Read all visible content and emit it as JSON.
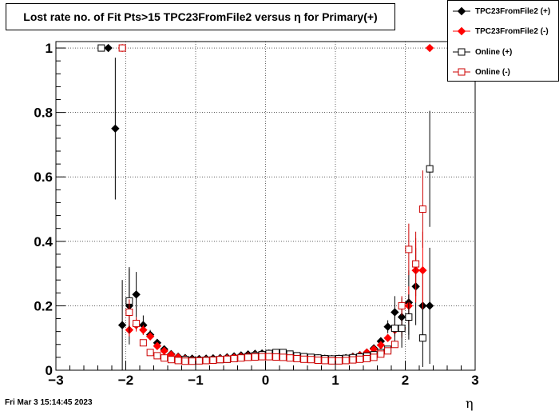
{
  "title": "Lost rate no. of Fit Pts>15 TPC23FromFile2 versus η for Primary(+)",
  "datestamp": "Fri Mar  3 15:14:45 2023",
  "xlabel": "η",
  "legend": [
    {
      "label": "TPC23FromFile2 (+)",
      "color": "#000000",
      "marker": "filled-diamond"
    },
    {
      "label": "TPC23FromFile2 (-)",
      "color": "#ff0000",
      "marker": "filled-diamond"
    },
    {
      "label": "Online (+)",
      "color": "#000000",
      "marker": "open-square"
    },
    {
      "label": "Online (-)",
      "color": "#cc0000",
      "marker": "open-square"
    }
  ],
  "chart_data": {
    "type": "scatter",
    "title": "Lost rate no. of Fit Pts>15 TPC23FromFile2 versus η for Primary(+)",
    "xlabel": "η",
    "ylabel": "",
    "xlim": [
      -3,
      3
    ],
    "ylim": [
      0,
      1.02
    ],
    "x_ticks": [
      -3,
      -2,
      -1,
      0,
      1,
      2,
      3
    ],
    "x_tick_labels": [
      "−3",
      "−2",
      "−1",
      "0",
      "1",
      "2",
      "3"
    ],
    "y_ticks": [
      0,
      0.2,
      0.4,
      0.6,
      0.8,
      1
    ],
    "y_tick_labels": [
      "0",
      "0.2",
      "0.4",
      "0.6",
      "0.8",
      "1"
    ],
    "grid": true,
    "legend_position": "top-right",
    "series": [
      {
        "name": "TPC23FromFile2 (+)",
        "color": "#000000",
        "marker": "filled-diamond",
        "points": [
          [
            -2.25,
            1.0,
            0
          ],
          [
            -2.15,
            0.75,
            0.22
          ],
          [
            -2.05,
            0.14,
            0.14
          ],
          [
            -1.95,
            0.2,
            0.12
          ],
          [
            -1.85,
            0.235,
            0.07
          ],
          [
            -1.75,
            0.14,
            0.03
          ],
          [
            -1.65,
            0.11,
            0.015
          ],
          [
            -1.55,
            0.085,
            0.01
          ],
          [
            -1.45,
            0.065,
            0.008
          ],
          [
            -1.35,
            0.05,
            0.006
          ],
          [
            -1.25,
            0.042,
            0.005
          ],
          [
            -1.15,
            0.038,
            0.004
          ],
          [
            -1.05,
            0.036,
            0.004
          ],
          [
            -0.95,
            0.035,
            0.004
          ],
          [
            -0.85,
            0.036,
            0.004
          ],
          [
            -0.75,
            0.037,
            0.004
          ],
          [
            -0.65,
            0.038,
            0.004
          ],
          [
            -0.55,
            0.04,
            0.004
          ],
          [
            -0.45,
            0.043,
            0.004
          ],
          [
            -0.35,
            0.046,
            0.004
          ],
          [
            -0.25,
            0.049,
            0.004
          ],
          [
            -0.15,
            0.051,
            0.004
          ],
          [
            -0.05,
            0.052,
            0.004
          ],
          [
            0.05,
            0.052,
            0.004
          ],
          [
            0.15,
            0.05,
            0.004
          ],
          [
            0.25,
            0.048,
            0.004
          ],
          [
            0.35,
            0.045,
            0.004
          ],
          [
            0.45,
            0.042,
            0.004
          ],
          [
            0.55,
            0.04,
            0.004
          ],
          [
            0.65,
            0.038,
            0.004
          ],
          [
            0.75,
            0.037,
            0.004
          ],
          [
            0.85,
            0.036,
            0.004
          ],
          [
            0.95,
            0.035,
            0.004
          ],
          [
            1.05,
            0.036,
            0.004
          ],
          [
            1.15,
            0.038,
            0.004
          ],
          [
            1.25,
            0.042,
            0.005
          ],
          [
            1.35,
            0.047,
            0.006
          ],
          [
            1.45,
            0.055,
            0.007
          ],
          [
            1.55,
            0.068,
            0.008
          ],
          [
            1.65,
            0.09,
            0.012
          ],
          [
            1.75,
            0.135,
            0.02
          ],
          [
            1.85,
            0.18,
            0.05
          ],
          [
            1.95,
            0.165,
            0.06
          ],
          [
            2.05,
            0.21,
            0.1
          ],
          [
            2.15,
            0.26,
            0.12
          ],
          [
            2.25,
            0.2,
            0.1
          ],
          [
            2.35,
            0.2,
            0.18
          ]
        ]
      },
      {
        "name": "TPC23FromFile2 (-)",
        "color": "#ff0000",
        "marker": "filled-diamond",
        "points": [
          [
            -2.05,
            1.0,
            0
          ],
          [
            -1.95,
            0.125,
            0.02
          ],
          [
            -1.85,
            0.14,
            0.02
          ],
          [
            -1.75,
            0.125,
            0.015
          ],
          [
            -1.65,
            0.105,
            0.012
          ],
          [
            -1.55,
            0.075,
            0.01
          ],
          [
            -1.45,
            0.06,
            0.008
          ],
          [
            -1.35,
            0.048,
            0.006
          ],
          [
            -1.25,
            0.04,
            0.005
          ],
          [
            -1.15,
            0.035,
            0.004
          ],
          [
            -1.05,
            0.032,
            0.004
          ],
          [
            -0.95,
            0.031,
            0.004
          ],
          [
            -0.85,
            0.032,
            0.004
          ],
          [
            -0.75,
            0.033,
            0.004
          ],
          [
            -0.65,
            0.035,
            0.004
          ],
          [
            -0.55,
            0.037,
            0.004
          ],
          [
            -0.45,
            0.039,
            0.004
          ],
          [
            -0.35,
            0.042,
            0.004
          ],
          [
            -0.25,
            0.044,
            0.004
          ],
          [
            -0.15,
            0.046,
            0.004
          ],
          [
            -0.05,
            0.047,
            0.004
          ],
          [
            0.05,
            0.047,
            0.004
          ],
          [
            0.15,
            0.046,
            0.004
          ],
          [
            0.25,
            0.044,
            0.004
          ],
          [
            0.35,
            0.042,
            0.004
          ],
          [
            0.45,
            0.039,
            0.004
          ],
          [
            0.55,
            0.037,
            0.004
          ],
          [
            0.65,
            0.035,
            0.004
          ],
          [
            0.75,
            0.033,
            0.004
          ],
          [
            0.85,
            0.032,
            0.004
          ],
          [
            0.95,
            0.031,
            0.004
          ],
          [
            1.05,
            0.032,
            0.004
          ],
          [
            1.15,
            0.035,
            0.004
          ],
          [
            1.25,
            0.04,
            0.005
          ],
          [
            1.35,
            0.046,
            0.006
          ],
          [
            1.45,
            0.055,
            0.007
          ],
          [
            1.55,
            0.065,
            0.008
          ],
          [
            1.65,
            0.078,
            0.01
          ],
          [
            1.75,
            0.1,
            0.012
          ],
          [
            1.85,
            0.125,
            0.02
          ],
          [
            1.95,
            0.13,
            0.03
          ],
          [
            2.05,
            0.2,
            0.06
          ],
          [
            2.15,
            0.31,
            0.1
          ],
          [
            2.25,
            0.31,
            0.12
          ],
          [
            2.35,
            1.0,
            0
          ]
        ]
      },
      {
        "name": "Online (+)",
        "color": "#000000",
        "marker": "open-square",
        "points": [
          [
            -2.35,
            1.0,
            0
          ],
          [
            -1.95,
            0.215,
            0.1
          ],
          [
            -1.15,
            0.033,
            0.004
          ],
          [
            -1.05,
            0.031,
            0.004
          ],
          [
            -0.95,
            0.03,
            0.004
          ],
          [
            -0.85,
            0.031,
            0.004
          ],
          [
            -0.75,
            0.032,
            0.004
          ],
          [
            -0.65,
            0.033,
            0.004
          ],
          [
            -0.55,
            0.034,
            0.004
          ],
          [
            -0.45,
            0.036,
            0.004
          ],
          [
            -0.35,
            0.039,
            0.004
          ],
          [
            -0.25,
            0.042,
            0.004
          ],
          [
            -0.15,
            0.045,
            0.004
          ],
          [
            -0.05,
            0.048,
            0.004
          ],
          [
            0.05,
            0.052,
            0.004
          ],
          [
            0.15,
            0.055,
            0.004
          ],
          [
            0.25,
            0.055,
            0.004
          ],
          [
            0.35,
            0.05,
            0.004
          ],
          [
            0.45,
            0.045,
            0.004
          ],
          [
            0.55,
            0.042,
            0.004
          ],
          [
            0.65,
            0.04,
            0.004
          ],
          [
            0.75,
            0.038,
            0.004
          ],
          [
            0.85,
            0.036,
            0.004
          ],
          [
            0.95,
            0.035,
            0.004
          ],
          [
            1.05,
            0.036,
            0.004
          ],
          [
            1.15,
            0.037,
            0.004
          ],
          [
            1.25,
            0.039,
            0.004
          ],
          [
            1.35,
            0.041,
            0.005
          ],
          [
            1.45,
            0.044,
            0.005
          ],
          [
            1.55,
            0.048,
            0.006
          ],
          [
            1.65,
            0.055,
            0.007
          ],
          [
            1.75,
            0.065,
            0.009
          ],
          [
            1.85,
            0.13,
            0.05
          ],
          [
            1.95,
            0.13,
            0.06
          ],
          [
            2.05,
            0.165,
            0.07
          ],
          [
            2.25,
            0.1,
            0.09
          ],
          [
            2.35,
            0.625,
            0.18
          ]
        ]
      },
      {
        "name": "Online (-)",
        "color": "#cc0000",
        "marker": "open-square",
        "points": [
          [
            -2.05,
            1.0,
            0
          ],
          [
            -1.95,
            0.18,
            0.04
          ],
          [
            -1.85,
            0.145,
            0.02
          ],
          [
            -1.75,
            0.085,
            0.01
          ],
          [
            -1.65,
            0.055,
            0.008
          ],
          [
            -1.55,
            0.045,
            0.006
          ],
          [
            -1.45,
            0.038,
            0.005
          ],
          [
            -1.35,
            0.033,
            0.004
          ],
          [
            -1.25,
            0.03,
            0.004
          ],
          [
            -1.15,
            0.028,
            0.004
          ],
          [
            -1.05,
            0.028,
            0.004
          ],
          [
            -0.95,
            0.029,
            0.004
          ],
          [
            -0.85,
            0.03,
            0.004
          ],
          [
            -0.75,
            0.031,
            0.004
          ],
          [
            -0.65,
            0.033,
            0.004
          ],
          [
            -0.55,
            0.034,
            0.004
          ],
          [
            -0.45,
            0.036,
            0.004
          ],
          [
            -0.35,
            0.038,
            0.004
          ],
          [
            -0.25,
            0.04,
            0.004
          ],
          [
            -0.15,
            0.041,
            0.004
          ],
          [
            -0.05,
            0.042,
            0.004
          ],
          [
            0.05,
            0.042,
            0.004
          ],
          [
            0.15,
            0.041,
            0.004
          ],
          [
            0.25,
            0.04,
            0.004
          ],
          [
            0.35,
            0.038,
            0.004
          ],
          [
            0.45,
            0.036,
            0.004
          ],
          [
            0.55,
            0.034,
            0.004
          ],
          [
            0.65,
            0.033,
            0.004
          ],
          [
            0.75,
            0.031,
            0.004
          ],
          [
            0.85,
            0.03,
            0.004
          ],
          [
            0.95,
            0.029,
            0.004
          ],
          [
            1.05,
            0.029,
            0.004
          ],
          [
            1.15,
            0.03,
            0.004
          ],
          [
            1.25,
            0.032,
            0.004
          ],
          [
            1.35,
            0.034,
            0.004
          ],
          [
            1.45,
            0.036,
            0.005
          ],
          [
            1.55,
            0.04,
            0.005
          ],
          [
            1.65,
            0.05,
            0.006
          ],
          [
            1.75,
            0.06,
            0.008
          ],
          [
            1.85,
            0.08,
            0.01
          ],
          [
            1.95,
            0.2,
            0.03
          ],
          [
            2.05,
            0.375,
            0.08
          ],
          [
            2.15,
            0.33,
            0.1
          ],
          [
            2.25,
            0.5,
            0.12
          ]
        ]
      }
    ]
  }
}
